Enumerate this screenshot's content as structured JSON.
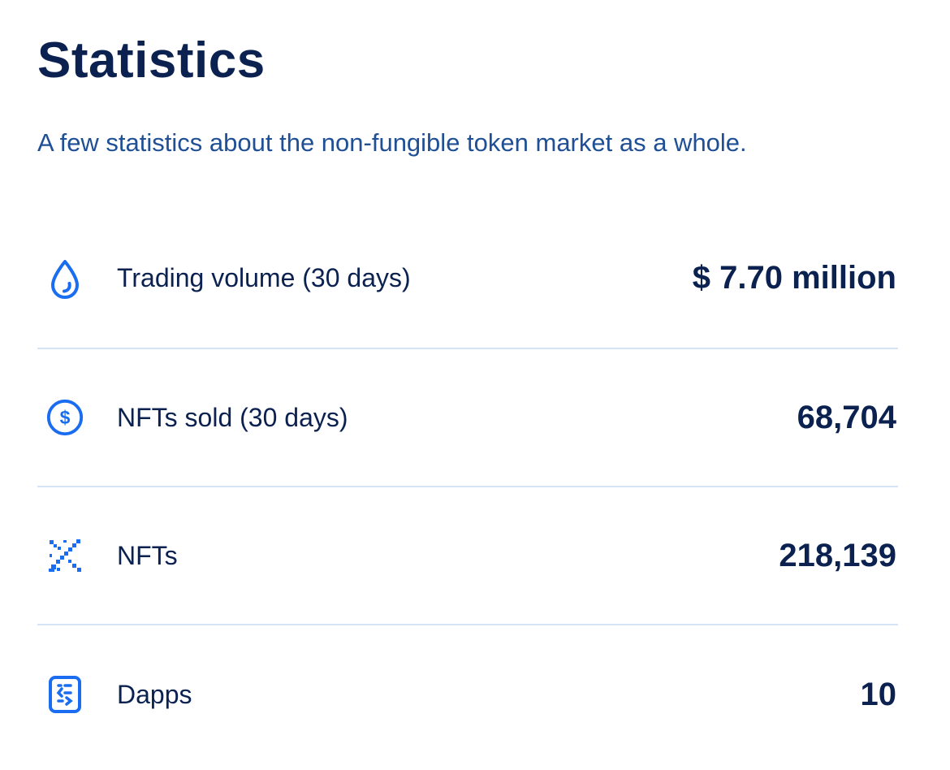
{
  "header": {
    "title": "Statistics",
    "subtitle": "A few statistics about the non-fungible token market as a whole."
  },
  "colors": {
    "heading": "#0b2150",
    "subtitle": "#1f4f95",
    "icon_accent": "#1a6cf0",
    "divider": "#d4e4f4"
  },
  "stats": [
    {
      "icon": "droplet-icon",
      "label": "Trading volume (30 days)",
      "value": "$ 7.70 million"
    },
    {
      "icon": "dollar-circle-icon",
      "label": "NFTs sold (30 days)",
      "value": "68,704"
    },
    {
      "icon": "pixel-sword-icon",
      "label": "NFTs",
      "value": "218,139"
    },
    {
      "icon": "dapp-card-icon",
      "label": "Dapps",
      "value": "10"
    }
  ]
}
